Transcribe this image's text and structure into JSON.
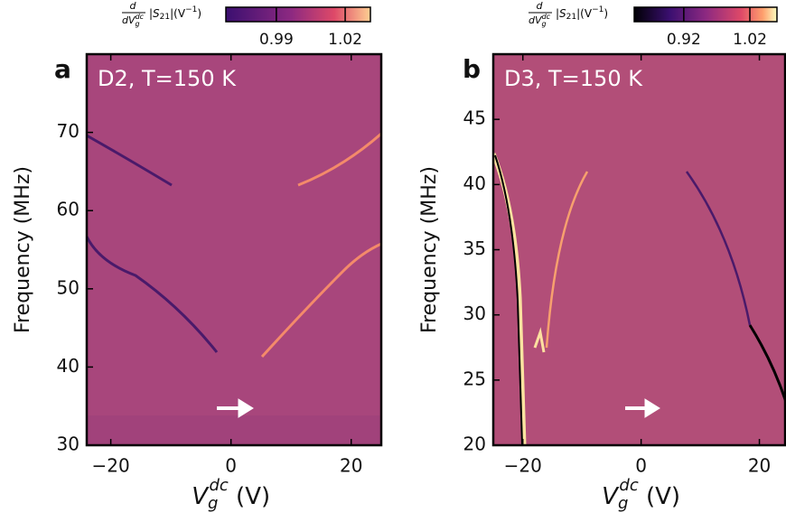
{
  "chart_data": [
    {
      "type": "heatmap",
      "panel_label": "a",
      "title": "D2, T=150 K",
      "x_label": {
        "symbol": "V",
        "sub": "g",
        "sup": "dc",
        "unit": " (V)"
      },
      "y_label": "Frequency (MHz)",
      "xlim": [
        -24,
        25
      ],
      "xticks": [
        {
          "value": -20,
          "label": "−20"
        },
        0,
        20
      ],
      "ylim": [
        30,
        80
      ],
      "yticks": [
        30,
        40,
        50,
        60,
        70
      ],
      "colorbar_label": {
        "numerator": "d",
        "denominator": "dV",
        "denominator_sub": "g",
        "denominator_sup": "dc",
        "rest": "|S",
        "rest_sub": "21",
        "tail": "|(V",
        "tail_sup": "−1",
        "end": ")"
      },
      "clim": [
        0.968,
        1.031
      ],
      "cticks": [
        0.99,
        1.02
      ],
      "colormap": "magma",
      "background": "#a8467c"
    },
    {
      "type": "heatmap",
      "panel_label": "b",
      "title": "D3, T=150 K",
      "x_label": {
        "symbol": "V",
        "sub": "g",
        "sup": "dc",
        "unit": " (V)"
      },
      "y_label": "Frequency (MHz)",
      "xlim": [
        -25,
        24.5
      ],
      "xticks": [
        {
          "value": -20,
          "label": "−20"
        },
        0,
        20
      ],
      "ylim": [
        20,
        50
      ],
      "yticks": [
        20,
        25,
        30,
        35,
        40,
        45
      ],
      "colorbar_label": {
        "numerator": "d",
        "denominator": "dV",
        "denominator_sub": "g",
        "denominator_sup": "dc",
        "rest": "|S",
        "rest_sub": "21",
        "tail": "|(V",
        "tail_sup": "−1",
        "end": ")"
      },
      "clim": [
        0.845,
        1.061
      ],
      "cticks": [
        0.92,
        1.02
      ],
      "colormap": "magma",
      "background": "#b24e78"
    }
  ]
}
